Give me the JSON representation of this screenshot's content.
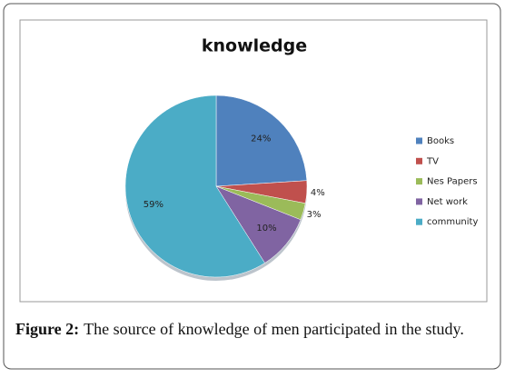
{
  "chart_data": {
    "type": "pie",
    "title": "knowledge",
    "categories": [
      "Books",
      "TV",
      "Nes Papers",
      "Net work",
      "community"
    ],
    "values": [
      24,
      4,
      3,
      10,
      59
    ],
    "value_labels": [
      "24%",
      "4%",
      "3%",
      "10%",
      "59%"
    ],
    "colors": [
      "#4f81bd",
      "#c0504d",
      "#9bbb59",
      "#8064a2",
      "#4bacc6"
    ],
    "legend": "right"
  },
  "caption": {
    "label": "Figure 2:",
    "text": "The source of knowledge of men participated in the study."
  }
}
